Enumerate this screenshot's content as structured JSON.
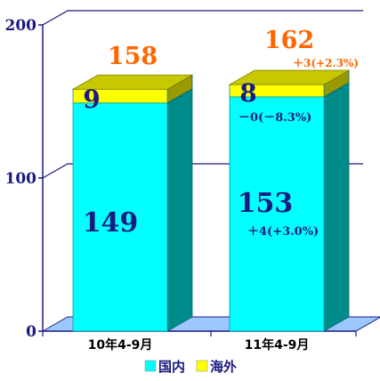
{
  "chart_data": {
    "type": "bar",
    "stacked": true,
    "three_d": true,
    "categories": [
      "10年4-9月",
      "11年4-9月"
    ],
    "series": [
      {
        "name": "国内",
        "values": [
          149,
          153
        ],
        "color": "#00ffff",
        "side_color": "#008b8b",
        "top_color": "#00cccc"
      },
      {
        "name": "海外",
        "values": [
          9,
          8
        ],
        "color": "#ffff00",
        "side_color": "#9a9a00",
        "top_color": "#c8c800"
      }
    ],
    "totals": [
      158,
      162
    ],
    "annotations": {
      "total_change": "＋3(+2.3%)",
      "overseas_change": "－0(－8.3%)",
      "domestic_change": "＋4(+3.0%)"
    },
    "y_ticks": [
      "0",
      "100",
      "200"
    ],
    "ylim": [
      0,
      200
    ],
    "grid": true,
    "legend_position": "bottom",
    "colors": {
      "axis_text": "#1a1a80",
      "grid": "#1a1a80",
      "floor": "#9cc8ff",
      "total_text": "#ff6600",
      "change_text": "#1a1a80"
    }
  }
}
